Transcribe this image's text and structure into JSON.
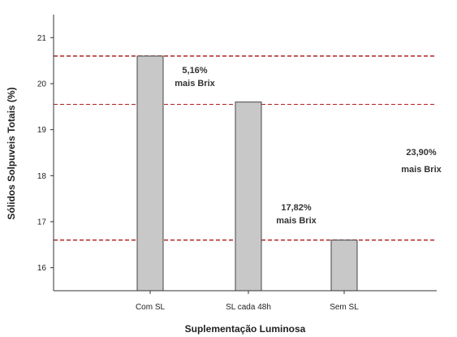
{
  "chart_data": {
    "type": "bar",
    "categories": [
      "Com SL",
      "SL cada 48h",
      "Sem SL"
    ],
    "values": [
      20.6,
      19.6,
      16.6
    ],
    "xlabel": "Suplementação Luminosa",
    "ylabel": "Sólidos Solpuveis Totais (%)",
    "ylim": [
      15.5,
      21.5
    ],
    "yticks": [
      16,
      17,
      18,
      19,
      20,
      21
    ],
    "grid": false,
    "bar_color": "#c8c8c8",
    "reference_lines": [
      {
        "value": 20.6,
        "color": "#b22222",
        "style": "dashed"
      },
      {
        "value": 19.55,
        "color": "#b22222",
        "style": "dashed"
      },
      {
        "value": 16.6,
        "color": "#b22222",
        "style": "dashed"
      }
    ],
    "annotations": [
      {
        "line1": "5,16%",
        "line2": "mais Brix"
      },
      {
        "line1": "17,82%",
        "line2": "mais Brix"
      },
      {
        "line1": "23,90%",
        "line2": "mais Brix"
      }
    ]
  }
}
